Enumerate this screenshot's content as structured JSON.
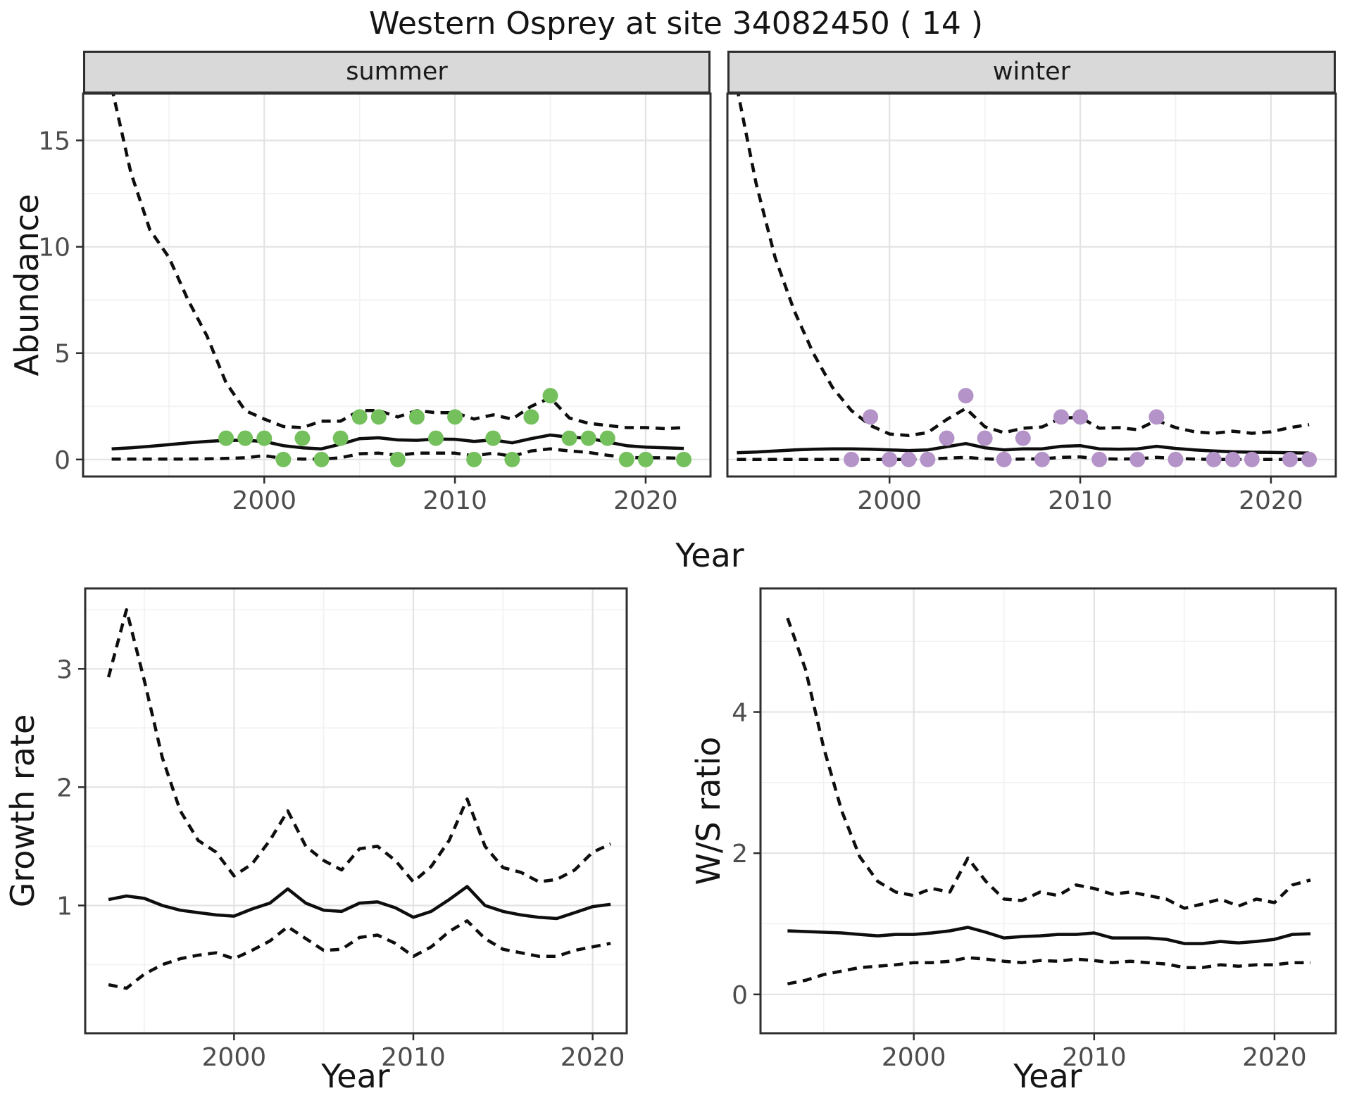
{
  "title": "Western Osprey at site 34082450 ( 14 )",
  "labels": {
    "x_axis": "Year",
    "abundance_axis": "Abundance",
    "growth_axis": "Growth rate",
    "ws_axis": "W/S ratio",
    "facet_summer": "summer",
    "facet_winter": "winter"
  },
  "colors": {
    "summer_point": "#74c05c",
    "winter_point": "#b493c8",
    "line": "#0e0e0e",
    "grid_major": "#e3e3e3",
    "grid_minor": "#f1f1f1",
    "panel_border": "#2e2e2e",
    "strip_bg": "#d9d9d9",
    "tick_text": "#4d4d4d",
    "text": "#141414"
  },
  "chart_data": [
    {
      "id": "summer",
      "type": "line",
      "title": "summer",
      "xlabel": "Year",
      "ylabel": "Abundance",
      "x_domain": [
        1990.5,
        2023.4
      ],
      "y_domain": [
        -0.8,
        17.2
      ],
      "x_ticks": [
        2000,
        2010,
        2020
      ],
      "x_minor": [
        1995,
        2005,
        2015
      ],
      "y_ticks": [
        0,
        5,
        10,
        15
      ],
      "y_minor": [
        2.5,
        7.5,
        12.5
      ],
      "x": [
        1992,
        1993,
        1994,
        1995,
        1996,
        1997,
        1998,
        1999,
        2000,
        2001,
        2002,
        2003,
        2004,
        2005,
        2006,
        2007,
        2008,
        2009,
        2010,
        2011,
        2012,
        2013,
        2014,
        2015,
        2016,
        2017,
        2018,
        2019,
        2020,
        2021,
        2022
      ],
      "series": [
        {
          "name": "lower_ci",
          "style": "dashed",
          "values": [
            0.02,
            0.02,
            0.02,
            0.02,
            0.02,
            0.03,
            0.05,
            0.08,
            0.18,
            0.05,
            0.02,
            0.02,
            0.08,
            0.27,
            0.3,
            0.2,
            0.3,
            0.3,
            0.3,
            0.17,
            0.3,
            0.15,
            0.4,
            0.5,
            0.4,
            0.33,
            0.2,
            0.1,
            0.08,
            0.08,
            0.05
          ]
        },
        {
          "name": "upper_ci",
          "style": "dashed",
          "values": [
            17.5,
            13.5,
            10.8,
            9.5,
            7.5,
            5.8,
            3.6,
            2.3,
            1.9,
            1.55,
            1.5,
            1.8,
            1.8,
            2.3,
            2.3,
            2.0,
            2.3,
            2.2,
            2.2,
            1.9,
            2.1,
            1.9,
            2.5,
            2.9,
            1.95,
            1.7,
            1.6,
            1.5,
            1.5,
            1.45,
            1.5
          ]
        },
        {
          "name": "mean",
          "style": "solid",
          "values": [
            0.5,
            0.55,
            0.62,
            0.7,
            0.78,
            0.85,
            0.9,
            0.9,
            0.85,
            0.65,
            0.55,
            0.5,
            0.72,
            0.98,
            1.02,
            0.92,
            0.9,
            0.96,
            0.95,
            0.85,
            0.92,
            0.78,
            0.98,
            1.15,
            1.05,
            1.0,
            0.82,
            0.65,
            0.58,
            0.55,
            0.52
          ]
        }
      ],
      "points": [
        [
          1998,
          1
        ],
        [
          1999,
          1
        ],
        [
          2000,
          1
        ],
        [
          2001,
          0
        ],
        [
          2002,
          1
        ],
        [
          2003,
          0
        ],
        [
          2004,
          1
        ],
        [
          2005,
          2
        ],
        [
          2006,
          2
        ],
        [
          2007,
          0
        ],
        [
          2008,
          2
        ],
        [
          2009,
          1
        ],
        [
          2010,
          2
        ],
        [
          2011,
          0
        ],
        [
          2012,
          1
        ],
        [
          2013,
          0
        ],
        [
          2014,
          2
        ],
        [
          2015,
          3
        ],
        [
          2016,
          1
        ],
        [
          2017,
          1
        ],
        [
          2018,
          1
        ],
        [
          2019,
          0
        ],
        [
          2020,
          0
        ],
        [
          2022,
          0
        ]
      ],
      "point_color": "#74c05c"
    },
    {
      "id": "winter",
      "type": "line",
      "title": "winter",
      "xlabel": "Year",
      "ylabel": "Abundance",
      "x_domain": [
        1991.5,
        2023.4
      ],
      "y_domain": [
        -0.8,
        17.2
      ],
      "x_ticks": [
        2000,
        2010,
        2020
      ],
      "x_minor": [
        1995,
        2005,
        2015
      ],
      "y_ticks": [
        0,
        5,
        10,
        15
      ],
      "y_minor": [
        2.5,
        7.5,
        12.5
      ],
      "x": [
        1992,
        1993,
        1994,
        1995,
        1996,
        1997,
        1998,
        1999,
        2000,
        2001,
        2002,
        2003,
        2004,
        2005,
        2006,
        2007,
        2008,
        2009,
        2010,
        2011,
        2012,
        2013,
        2014,
        2015,
        2016,
        2017,
        2018,
        2019,
        2020,
        2021,
        2022
      ],
      "series": [
        {
          "name": "lower_ci",
          "style": "dashed",
          "values": [
            0.0,
            0.0,
            0.0,
            0.0,
            0.0,
            0.0,
            0.0,
            0.0,
            0.0,
            0.0,
            0.02,
            0.06,
            0.1,
            0.03,
            0.0,
            0.02,
            0.03,
            0.1,
            0.12,
            0.03,
            0.02,
            0.03,
            0.1,
            0.05,
            0.02,
            0.0,
            0.0,
            0.0,
            0.0,
            0.0,
            0.0
          ]
        },
        {
          "name": "upper_ci",
          "style": "dashed",
          "values": [
            17.5,
            13.0,
            9.5,
            7.0,
            5.0,
            3.4,
            2.3,
            1.6,
            1.2,
            1.13,
            1.26,
            1.88,
            2.4,
            1.54,
            1.26,
            1.47,
            1.53,
            1.95,
            1.98,
            1.47,
            1.5,
            1.4,
            1.84,
            1.5,
            1.3,
            1.23,
            1.33,
            1.23,
            1.3,
            1.5,
            1.64
          ]
        },
        {
          "name": "mean",
          "style": "solid",
          "values": [
            0.32,
            0.35,
            0.4,
            0.45,
            0.48,
            0.5,
            0.5,
            0.48,
            0.45,
            0.42,
            0.45,
            0.6,
            0.75,
            0.55,
            0.45,
            0.5,
            0.5,
            0.62,
            0.65,
            0.5,
            0.48,
            0.5,
            0.62,
            0.52,
            0.45,
            0.4,
            0.36,
            0.34,
            0.33,
            0.32,
            0.3
          ]
        }
      ],
      "points": [
        [
          1998,
          0
        ],
        [
          1999,
          2
        ],
        [
          2000,
          0
        ],
        [
          2001,
          0
        ],
        [
          2002,
          0
        ],
        [
          2003,
          1
        ],
        [
          2004,
          3
        ],
        [
          2005,
          1
        ],
        [
          2006,
          0
        ],
        [
          2007,
          1
        ],
        [
          2008,
          0
        ],
        [
          2009,
          2
        ],
        [
          2010,
          2
        ],
        [
          2011,
          0
        ],
        [
          2013,
          0
        ],
        [
          2014,
          2
        ],
        [
          2015,
          0
        ],
        [
          2017,
          0
        ],
        [
          2018,
          0
        ],
        [
          2019,
          0
        ],
        [
          2021,
          0
        ],
        [
          2022,
          0
        ]
      ],
      "point_color": "#b493c8"
    },
    {
      "id": "growth",
      "type": "line",
      "title": "",
      "xlabel": "Year",
      "ylabel": "Growth rate",
      "x_domain": [
        1991.7,
        2021.9
      ],
      "y_domain": [
        -0.08,
        3.68
      ],
      "x_ticks": [
        2000,
        2010,
        2020
      ],
      "x_minor": [
        1995,
        2005,
        2015
      ],
      "y_ticks": [
        1,
        2,
        3
      ],
      "y_minor": [
        0.5,
        1.5,
        2.5,
        3.5
      ],
      "x": [
        1993,
        1994,
        1995,
        1996,
        1997,
        1998,
        1999,
        2000,
        2001,
        2002,
        2003,
        2004,
        2005,
        2006,
        2007,
        2008,
        2009,
        2010,
        2011,
        2012,
        2013,
        2014,
        2015,
        2016,
        2017,
        2018,
        2019,
        2020,
        2021
      ],
      "series": [
        {
          "name": "lower_ci",
          "style": "dashed",
          "values": [
            0.33,
            0.3,
            0.42,
            0.5,
            0.55,
            0.58,
            0.6,
            0.55,
            0.62,
            0.7,
            0.82,
            0.72,
            0.62,
            0.63,
            0.73,
            0.75,
            0.68,
            0.57,
            0.65,
            0.78,
            0.87,
            0.72,
            0.63,
            0.6,
            0.57,
            0.57,
            0.62,
            0.65,
            0.68
          ]
        },
        {
          "name": "upper_ci",
          "style": "dashed",
          "values": [
            2.93,
            3.5,
            2.9,
            2.25,
            1.8,
            1.55,
            1.45,
            1.25,
            1.35,
            1.55,
            1.8,
            1.5,
            1.38,
            1.3,
            1.48,
            1.5,
            1.38,
            1.2,
            1.33,
            1.55,
            1.9,
            1.5,
            1.32,
            1.28,
            1.2,
            1.22,
            1.3,
            1.45,
            1.52
          ]
        },
        {
          "name": "mean",
          "style": "solid",
          "values": [
            1.05,
            1.08,
            1.06,
            1.0,
            0.96,
            0.94,
            0.92,
            0.91,
            0.97,
            1.02,
            1.14,
            1.02,
            0.96,
            0.95,
            1.02,
            1.03,
            0.98,
            0.9,
            0.95,
            1.05,
            1.16,
            1.0,
            0.95,
            0.92,
            0.9,
            0.89,
            0.94,
            0.99,
            1.01
          ]
        }
      ],
      "points": [],
      "point_color": "#74c05c"
    },
    {
      "id": "ws",
      "type": "line",
      "title": "",
      "xlabel": "Year",
      "ylabel": "W/S ratio",
      "x_domain": [
        1991.5,
        2023.4
      ],
      "y_domain": [
        -0.55,
        5.75
      ],
      "x_ticks": [
        2000,
        2010,
        2020
      ],
      "x_minor": [
        1995,
        2005,
        2015
      ],
      "y_ticks": [
        0,
        2,
        4
      ],
      "y_minor": [
        1,
        3,
        5
      ],
      "x": [
        1993,
        1994,
        1995,
        1996,
        1997,
        1998,
        1999,
        2000,
        2001,
        2002,
        2003,
        2004,
        2005,
        2006,
        2007,
        2008,
        2009,
        2010,
        2011,
        2012,
        2013,
        2014,
        2015,
        2016,
        2017,
        2018,
        2019,
        2020,
        2021,
        2022
      ],
      "series": [
        {
          "name": "lower_ci",
          "style": "dashed",
          "values": [
            0.15,
            0.2,
            0.28,
            0.33,
            0.38,
            0.4,
            0.42,
            0.45,
            0.45,
            0.47,
            0.52,
            0.5,
            0.47,
            0.45,
            0.48,
            0.47,
            0.5,
            0.48,
            0.45,
            0.47,
            0.45,
            0.43,
            0.38,
            0.38,
            0.42,
            0.4,
            0.42,
            0.42,
            0.45,
            0.45
          ]
        },
        {
          "name": "upper_ci",
          "style": "dashed",
          "values": [
            5.33,
            4.6,
            3.5,
            2.6,
            1.95,
            1.6,
            1.45,
            1.4,
            1.5,
            1.45,
            1.93,
            1.6,
            1.35,
            1.33,
            1.45,
            1.4,
            1.55,
            1.5,
            1.42,
            1.45,
            1.4,
            1.35,
            1.22,
            1.28,
            1.35,
            1.25,
            1.35,
            1.3,
            1.55,
            1.62
          ]
        },
        {
          "name": "mean",
          "style": "solid",
          "values": [
            0.9,
            0.89,
            0.88,
            0.87,
            0.85,
            0.83,
            0.85,
            0.85,
            0.87,
            0.9,
            0.95,
            0.88,
            0.8,
            0.82,
            0.83,
            0.85,
            0.85,
            0.87,
            0.8,
            0.8,
            0.8,
            0.78,
            0.72,
            0.72,
            0.75,
            0.73,
            0.75,
            0.78,
            0.85,
            0.86
          ]
        }
      ],
      "points": [],
      "point_color": "#b493c8"
    }
  ]
}
